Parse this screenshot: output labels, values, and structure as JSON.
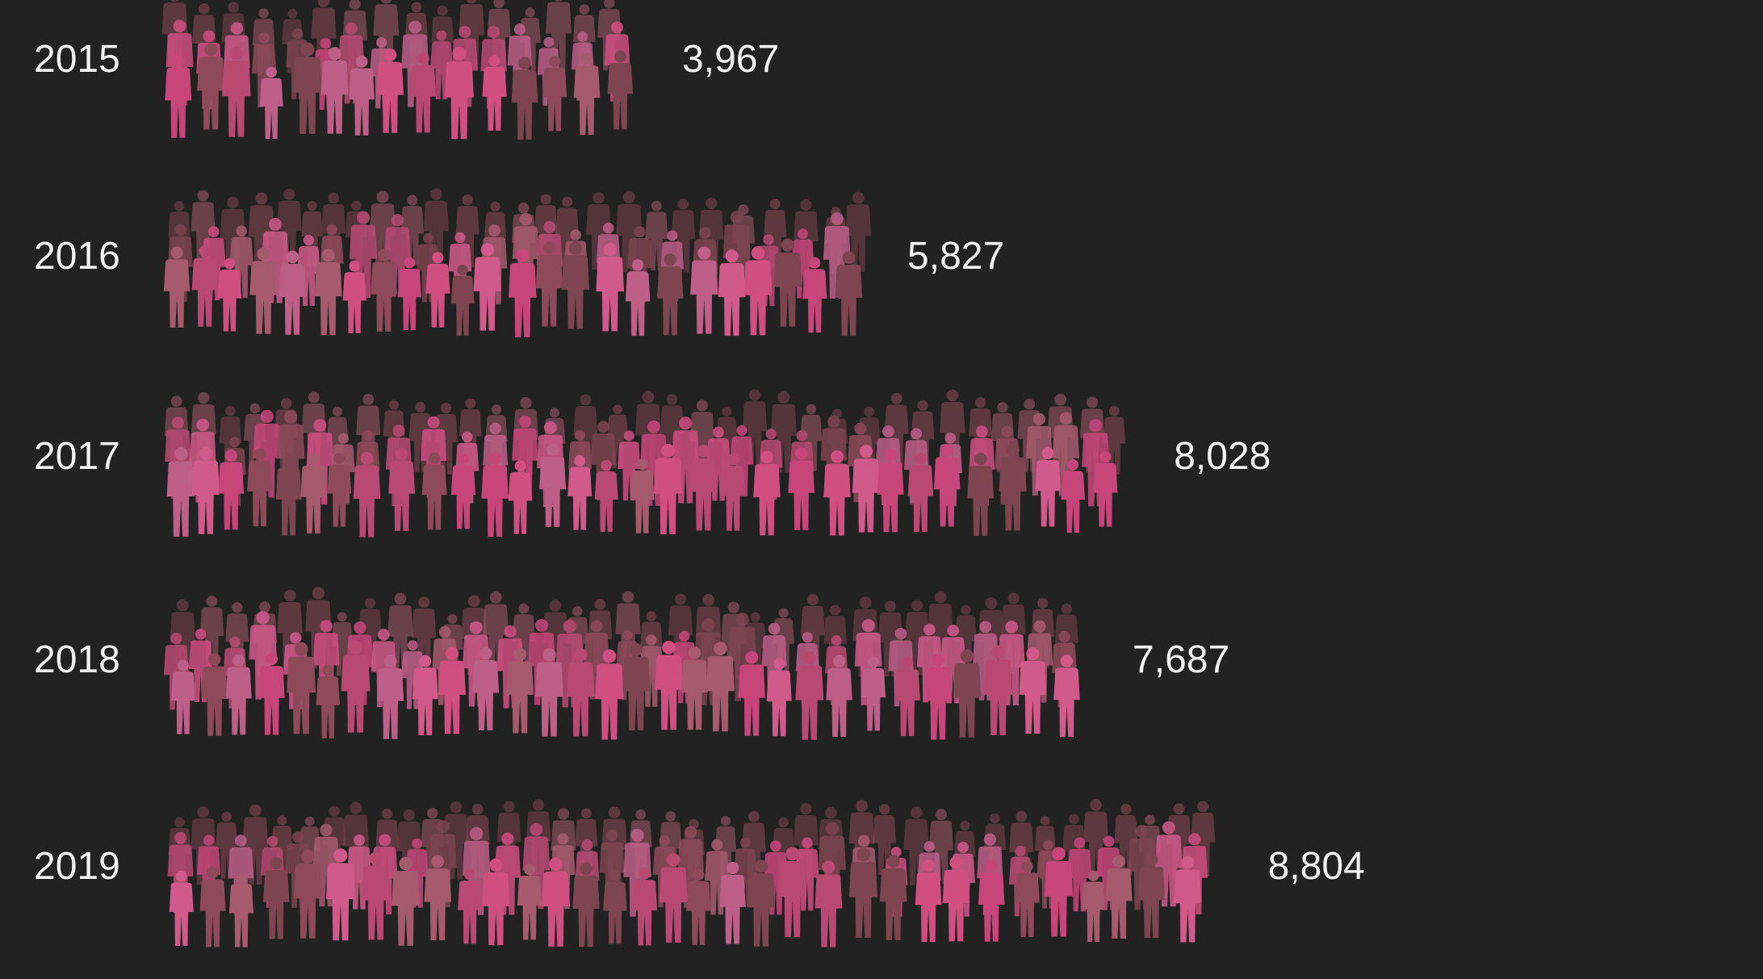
{
  "chart_data": {
    "type": "bar",
    "categories": [
      "2015",
      "2016",
      "2017",
      "2018",
      "2019"
    ],
    "values": [
      3967,
      5827,
      8028,
      7687,
      8804
    ],
    "value_labels": [
      "3,967",
      "5,827",
      "8,028",
      "7,687",
      "8,804"
    ],
    "title": "",
    "xlabel": "",
    "ylabel": "",
    "mark": "crowd-of-people-silhouettes",
    "orientation": "horizontal",
    "legend": "none",
    "grid": false,
    "colors": {
      "background": "#222222",
      "text": "#f2f2f2",
      "figure_palette": [
        "#c7467a",
        "#b84a72",
        "#d05b8a",
        "#8e4a5c",
        "#a65a70",
        "#cf4f7f",
        "#7d4452",
        "#bd5f86"
      ]
    }
  }
}
